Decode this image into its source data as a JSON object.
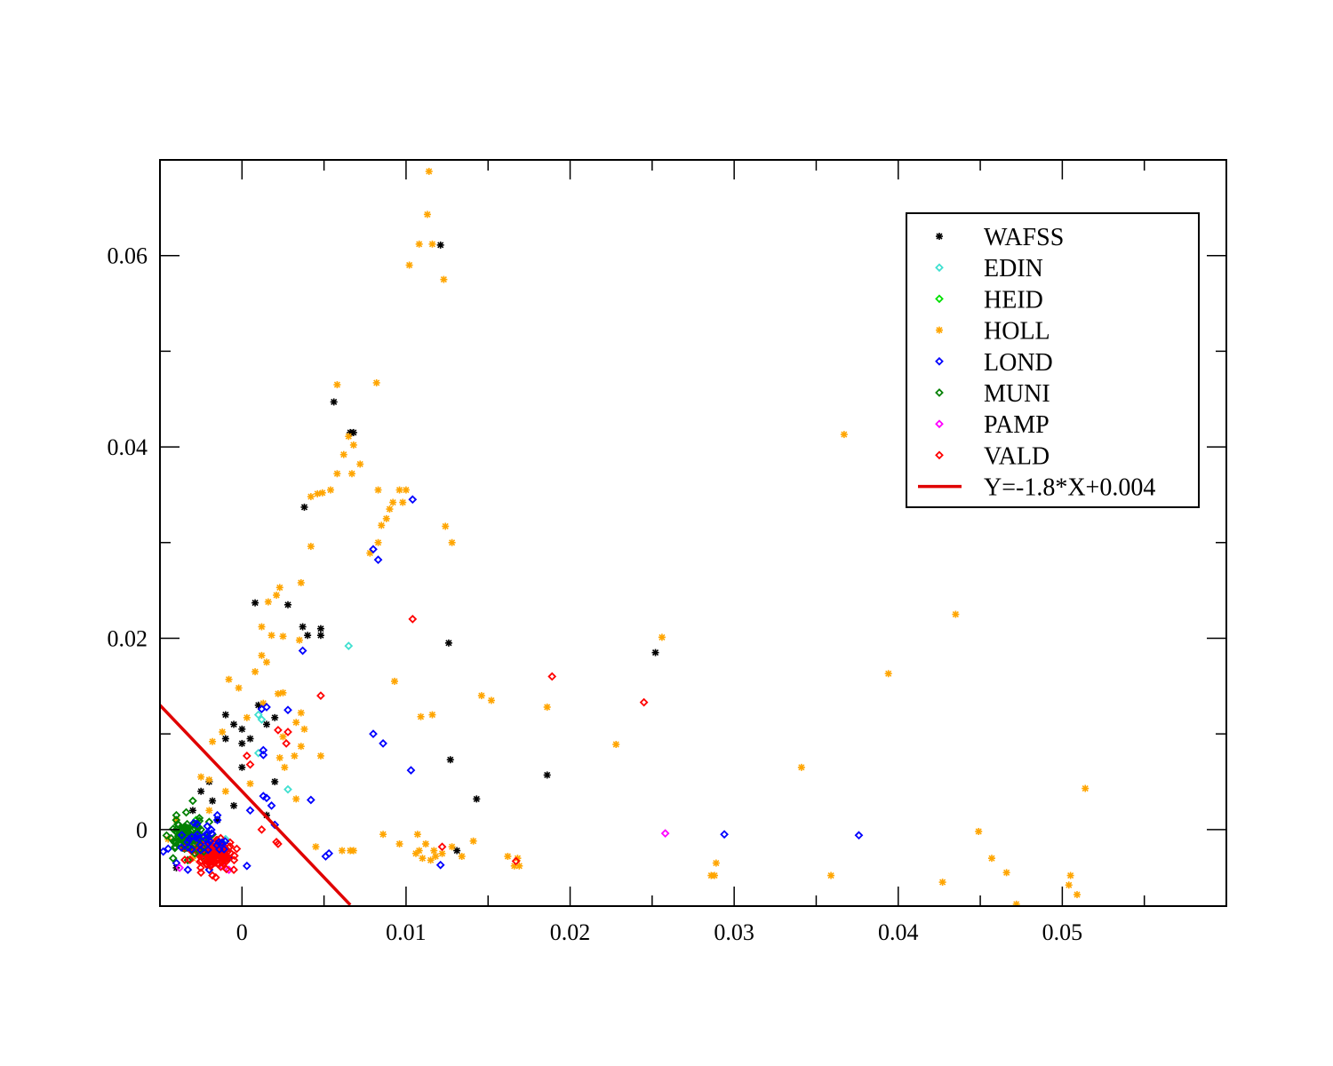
{
  "chart_data": {
    "type": "scatter",
    "title": "",
    "xlabel": "",
    "ylabel": "",
    "xlim": [
      -0.005,
      0.06
    ],
    "ylim": [
      -0.008,
      0.07
    ],
    "grid": false,
    "legend_position": "top-right",
    "x_ticks": [
      {
        "value": 0,
        "label": "0"
      },
      {
        "value": 0.01,
        "label": "0.01"
      },
      {
        "value": 0.02,
        "label": "0.02"
      },
      {
        "value": 0.03,
        "label": "0.03"
      },
      {
        "value": 0.04,
        "label": "0.04"
      },
      {
        "value": 0.05,
        "label": "0.05"
      }
    ],
    "x_minor_ticks": [
      0.005,
      0.015,
      0.025,
      0.035,
      0.045,
      0.055
    ],
    "y_ticks": [
      {
        "value": 0,
        "label": "0"
      },
      {
        "value": 0.02,
        "label": "0.02"
      },
      {
        "value": 0.04,
        "label": "0.04"
      },
      {
        "value": 0.06,
        "label": "0.06"
      }
    ],
    "y_minor_ticks": [
      0.01,
      0.03,
      0.05
    ],
    "series": [
      {
        "name": "WAFSS",
        "marker": "star",
        "color": "#000000",
        "points": [
          [
            -0.004,
            -0.004
          ],
          [
            -0.0035,
            -0.002
          ],
          [
            -0.003,
            0.002
          ],
          [
            -0.0025,
            0.004
          ],
          [
            -0.002,
            0.005
          ],
          [
            -0.0018,
            0.003
          ],
          [
            -0.0015,
            0.001
          ],
          [
            -0.001,
            0.0095
          ],
          [
            -0.001,
            0.012
          ],
          [
            -0.0005,
            0.011
          ],
          [
            0,
            0.009
          ],
          [
            0,
            0.0105
          ],
          [
            0.0005,
            0.0095
          ],
          [
            0.001,
            0.013
          ],
          [
            0.0008,
            0.0237
          ],
          [
            0.0015,
            0.011
          ],
          [
            0.002,
            0.005
          ],
          [
            0.002,
            0.0117
          ],
          [
            0.0028,
            0.0235
          ],
          [
            0.0037,
            0.0212
          ],
          [
            0.004,
            0.0203
          ],
          [
            0.0038,
            0.0337
          ],
          [
            0.0048,
            0.021
          ],
          [
            0.0048,
            0.0203
          ],
          [
            0.0056,
            0.0447
          ],
          [
            0.0066,
            0.0415
          ],
          [
            0.0068,
            0.0415
          ],
          [
            0.0121,
            0.0611
          ],
          [
            0.0126,
            0.0195
          ],
          [
            0.0127,
            0.0073
          ],
          [
            0.0131,
            -0.0022
          ],
          [
            0.0143,
            0.0032
          ],
          [
            0.0186,
            0.0057
          ],
          [
            0.0252,
            0.0185
          ],
          [
            0.0,
            0.0065
          ],
          [
            -0.0005,
            0.0025
          ],
          [
            0.0015,
            0.0015
          ]
        ]
      },
      {
        "name": "EDIN",
        "marker": "diamond",
        "color": "#40e0d0",
        "points": [
          [
            0.0065,
            0.0192
          ],
          [
            0.001,
            0.012
          ],
          [
            0.0012,
            0.0115
          ],
          [
            0.0028,
            0.0042
          ],
          [
            0.001,
            0.008
          ],
          [
            -0.0015,
            -0.002
          ],
          [
            -0.001,
            -0.001
          ]
        ]
      },
      {
        "name": "HEID",
        "marker": "diamond",
        "color": "#00e000",
        "points": [
          [
            -0.0035,
            -0.001
          ],
          [
            -0.003,
            0.0
          ],
          [
            -0.0032,
            -0.002
          ],
          [
            -0.0025,
            -0.001
          ],
          [
            -0.0028,
            0.001
          ]
        ]
      },
      {
        "name": "HOLL",
        "marker": "star",
        "color": "#ffa500",
        "points": [
          [
            0.0114,
            0.0688
          ],
          [
            0.0113,
            0.0643
          ],
          [
            0.0108,
            0.0612
          ],
          [
            0.0116,
            0.0612
          ],
          [
            0.0102,
            0.059
          ],
          [
            0.0123,
            0.0575
          ],
          [
            0.0058,
            0.0465
          ],
          [
            0.0082,
            0.0467
          ],
          [
            0.0065,
            0.0411
          ],
          [
            0.0062,
            0.0392
          ],
          [
            0.0068,
            0.0402
          ],
          [
            0.0072,
            0.0382
          ],
          [
            0.0058,
            0.0372
          ],
          [
            0.0067,
            0.0372
          ],
          [
            0.0054,
            0.0355
          ],
          [
            0.0049,
            0.0352
          ],
          [
            0.0046,
            0.0351
          ],
          [
            0.0042,
            0.0348
          ],
          [
            0.0083,
            0.0355
          ],
          [
            0.0096,
            0.0355
          ],
          [
            0.01,
            0.0355
          ],
          [
            0.0098,
            0.0342
          ],
          [
            0.0092,
            0.0342
          ],
          [
            0.009,
            0.0335
          ],
          [
            0.0088,
            0.0325
          ],
          [
            0.0085,
            0.0318
          ],
          [
            0.0124,
            0.0317
          ],
          [
            0.0042,
            0.0296
          ],
          [
            0.0083,
            0.03
          ],
          [
            0.0078,
            0.0289
          ],
          [
            0.0128,
            0.03
          ],
          [
            0.0036,
            0.0258
          ],
          [
            0.0023,
            0.0253
          ],
          [
            0.0021,
            0.0245
          ],
          [
            0.0016,
            0.0238
          ],
          [
            0.0012,
            0.0212
          ],
          [
            0.0025,
            0.0202
          ],
          [
            0.0018,
            0.0203
          ],
          [
            0.0035,
            0.0198
          ],
          [
            0.0256,
            0.0201
          ],
          [
            0.0435,
            0.0225
          ],
          [
            0.0367,
            0.0413
          ],
          [
            -0.0008,
            0.0157
          ],
          [
            -0.0002,
            0.0148
          ],
          [
            0.0015,
            0.0175
          ],
          [
            0.0008,
            0.0165
          ],
          [
            0.0012,
            0.0182
          ],
          [
            0.0022,
            0.0142
          ],
          [
            0.0025,
            0.0143
          ],
          [
            0.0036,
            0.0122
          ],
          [
            0.0033,
            0.0112
          ],
          [
            0.0038,
            0.0105
          ],
          [
            0.0025,
            0.0097
          ],
          [
            0.0036,
            0.0087
          ],
          [
            0.0032,
            0.0077
          ],
          [
            -0.0012,
            0.0102
          ],
          [
            -0.0018,
            0.0092
          ],
          [
            0.0003,
            0.0117
          ],
          [
            0.0013,
            0.0132
          ],
          [
            0.0093,
            0.0155
          ],
          [
            0.0109,
            0.0118
          ],
          [
            0.0116,
            0.012
          ],
          [
            0.0146,
            0.014
          ],
          [
            0.0152,
            0.0135
          ],
          [
            0.0186,
            0.0128
          ],
          [
            0.0228,
            0.0089
          ],
          [
            0.0394,
            0.0163
          ],
          [
            0.0341,
            0.0065
          ],
          [
            0.0048,
            0.0077
          ],
          [
            0.0023,
            0.0075
          ],
          [
            0.0026,
            0.0065
          ],
          [
            -0.002,
            0.0052
          ],
          [
            -0.0025,
            0.0055
          ],
          [
            0.0033,
            0.0032
          ],
          [
            0.0005,
            0.0048
          ],
          [
            0.0086,
            -0.0005
          ],
          [
            0.0107,
            -0.0005
          ],
          [
            0.0112,
            -0.0015
          ],
          [
            0.0117,
            -0.0022
          ],
          [
            0.0122,
            -0.0025
          ],
          [
            0.0128,
            -0.0018
          ],
          [
            0.0134,
            -0.0028
          ],
          [
            0.0141,
            -0.0012
          ],
          [
            0.0096,
            -0.0015
          ],
          [
            0.0106,
            -0.0025
          ],
          [
            0.011,
            -0.003
          ],
          [
            0.0115,
            -0.0032
          ],
          [
            0.0118,
            -0.0028
          ],
          [
            0.0108,
            -0.0022
          ],
          [
            0.0162,
            -0.0028
          ],
          [
            0.0166,
            -0.0038
          ],
          [
            0.0169,
            -0.0038
          ],
          [
            0.0168,
            -0.003
          ],
          [
            0.0045,
            -0.0018
          ],
          [
            0.0061,
            -0.0022
          ],
          [
            0.0066,
            -0.0022
          ],
          [
            0.0068,
            -0.0022
          ],
          [
            0.0289,
            -0.0035
          ],
          [
            0.0288,
            -0.0048
          ],
          [
            0.0286,
            -0.0048
          ],
          [
            0.0359,
            -0.0048
          ],
          [
            0.0427,
            -0.0055
          ],
          [
            0.0449,
            -0.0002
          ],
          [
            0.0457,
            -0.003
          ],
          [
            0.0466,
            -0.0045
          ],
          [
            0.0472,
            -0.0078
          ],
          [
            0.0505,
            -0.0048
          ],
          [
            0.0504,
            -0.0058
          ],
          [
            0.0509,
            -0.0068
          ],
          [
            0.0514,
            0.0043
          ],
          [
            -0.0045,
            -0.001
          ],
          [
            -0.004,
            0.001
          ],
          [
            -0.003,
            -0.003
          ],
          [
            -0.002,
            0.002
          ],
          [
            -0.001,
            0.004
          ]
        ]
      },
      {
        "name": "LOND",
        "marker": "diamond",
        "color": "#0000ff",
        "points": [
          [
            0.0104,
            0.0345
          ],
          [
            0.008,
            0.0293
          ],
          [
            0.0083,
            0.0282
          ],
          [
            0.0037,
            0.0187
          ],
          [
            0.0015,
            0.0128
          ],
          [
            0.0012,
            0.0126
          ],
          [
            0.0028,
            0.0125
          ],
          [
            0.0013,
            0.0078
          ],
          [
            0.0013,
            0.0083
          ],
          [
            0.008,
            0.01
          ],
          [
            0.0086,
            0.009
          ],
          [
            0.0103,
            0.0062
          ],
          [
            0.0042,
            0.0031
          ],
          [
            0.0015,
            0.0033
          ],
          [
            0.0018,
            0.0025
          ],
          [
            0.0013,
            0.0035
          ],
          [
            0.0053,
            -0.0025
          ],
          [
            0.0051,
            -0.0028
          ],
          [
            0.0121,
            -0.0037
          ],
          [
            0.0294,
            -0.0005
          ],
          [
            0.0376,
            -0.0006
          ],
          [
            -0.0048,
            -0.0023
          ],
          [
            -0.0045,
            -0.002
          ],
          [
            -0.004,
            -0.0035
          ],
          [
            -0.0033,
            -0.0042
          ],
          [
            -0.002,
            -0.0042
          ],
          [
            -0.0015,
            0.001
          ],
          [
            -0.0015,
            0.0015
          ],
          [
            0.0005,
            0.002
          ],
          [
            0.002,
            0.0005
          ],
          [
            0.0003,
            -0.0038
          ],
          [
            -0.0008,
            -0.003
          ]
        ]
      },
      {
        "name": "MUNI",
        "marker": "diamond",
        "color": "#008000",
        "points": [
          [
            -0.0038,
            -0.0005
          ],
          [
            -0.0035,
            -0.002
          ],
          [
            -0.0032,
            -0.0012
          ],
          [
            -0.003,
            0.0005
          ],
          [
            -0.003,
            0.003
          ],
          [
            -0.0028,
            -0.0022
          ],
          [
            -0.0025,
            0.0
          ],
          [
            -0.0022,
            -0.0015
          ],
          [
            -0.002,
            0.0008
          ],
          [
            -0.0018,
            -0.0005
          ],
          [
            -0.004,
            0.0015
          ],
          [
            -0.0042,
            -0.003
          ],
          [
            -0.0036,
            0.0
          ],
          [
            -0.0033,
            -0.0032
          ],
          [
            -0.0026,
            0.0012
          ],
          [
            -0.0024,
            -0.0028
          ],
          [
            -0.0021,
            -0.0008
          ],
          [
            -0.0034,
            0.0018
          ],
          [
            -0.0029,
            -0.0006
          ],
          [
            -0.0019,
            -0.002
          ]
        ]
      },
      {
        "name": "PAMP",
        "marker": "diamond",
        "color": "#ff00ff",
        "points": [
          [
            0.0258,
            -0.0004
          ],
          [
            -0.0038,
            -0.004
          ],
          [
            -0.0008,
            -0.0042
          ],
          [
            -0.0012,
            -0.0038
          ]
        ]
      },
      {
        "name": "VALD",
        "marker": "diamond",
        "color": "#ff0000",
        "points": [
          [
            0.0104,
            0.022
          ],
          [
            0.0189,
            0.016
          ],
          [
            0.0245,
            0.0133
          ],
          [
            0.0048,
            0.014
          ],
          [
            0.0022,
            0.0104
          ],
          [
            0.0028,
            0.0102
          ],
          [
            0.0027,
            0.009
          ],
          [
            0.0005,
            0.0068
          ],
          [
            0.0003,
            0.0077
          ],
          [
            0.0022,
            -0.0015
          ],
          [
            0.0021,
            -0.0013
          ],
          [
            0.0122,
            -0.0018
          ],
          [
            0.0167,
            -0.0033
          ],
          [
            -0.0016,
            -0.005
          ],
          [
            -0.0025,
            -0.0045
          ],
          [
            -0.0018,
            -0.0048
          ],
          [
            -0.0005,
            -0.0042
          ],
          [
            0.0012,
            0.0,
            "x"
          ]
        ]
      }
    ],
    "dense_clusters": [
      {
        "series": "VALD",
        "color": "#ff0000",
        "center": [
          -0.0018,
          -0.0025
        ],
        "spread": [
          0.0014,
          0.0014
        ],
        "count": 140
      },
      {
        "series": "MUNI",
        "color": "#008000",
        "center": [
          -0.0032,
          -0.0008
        ],
        "spread": [
          0.0012,
          0.0015
        ],
        "count": 70
      },
      {
        "series": "LOND",
        "color": "#0000ff",
        "center": [
          -0.0025,
          -0.001
        ],
        "spread": [
          0.0018,
          0.0016
        ],
        "count": 30
      }
    ],
    "fit_line": {
      "name": "Y=-1.8*X+0.004",
      "color": "#e00000",
      "slope": -1.8,
      "intercept": 0.004,
      "x_range": [
        -0.005,
        0.0066
      ]
    }
  }
}
